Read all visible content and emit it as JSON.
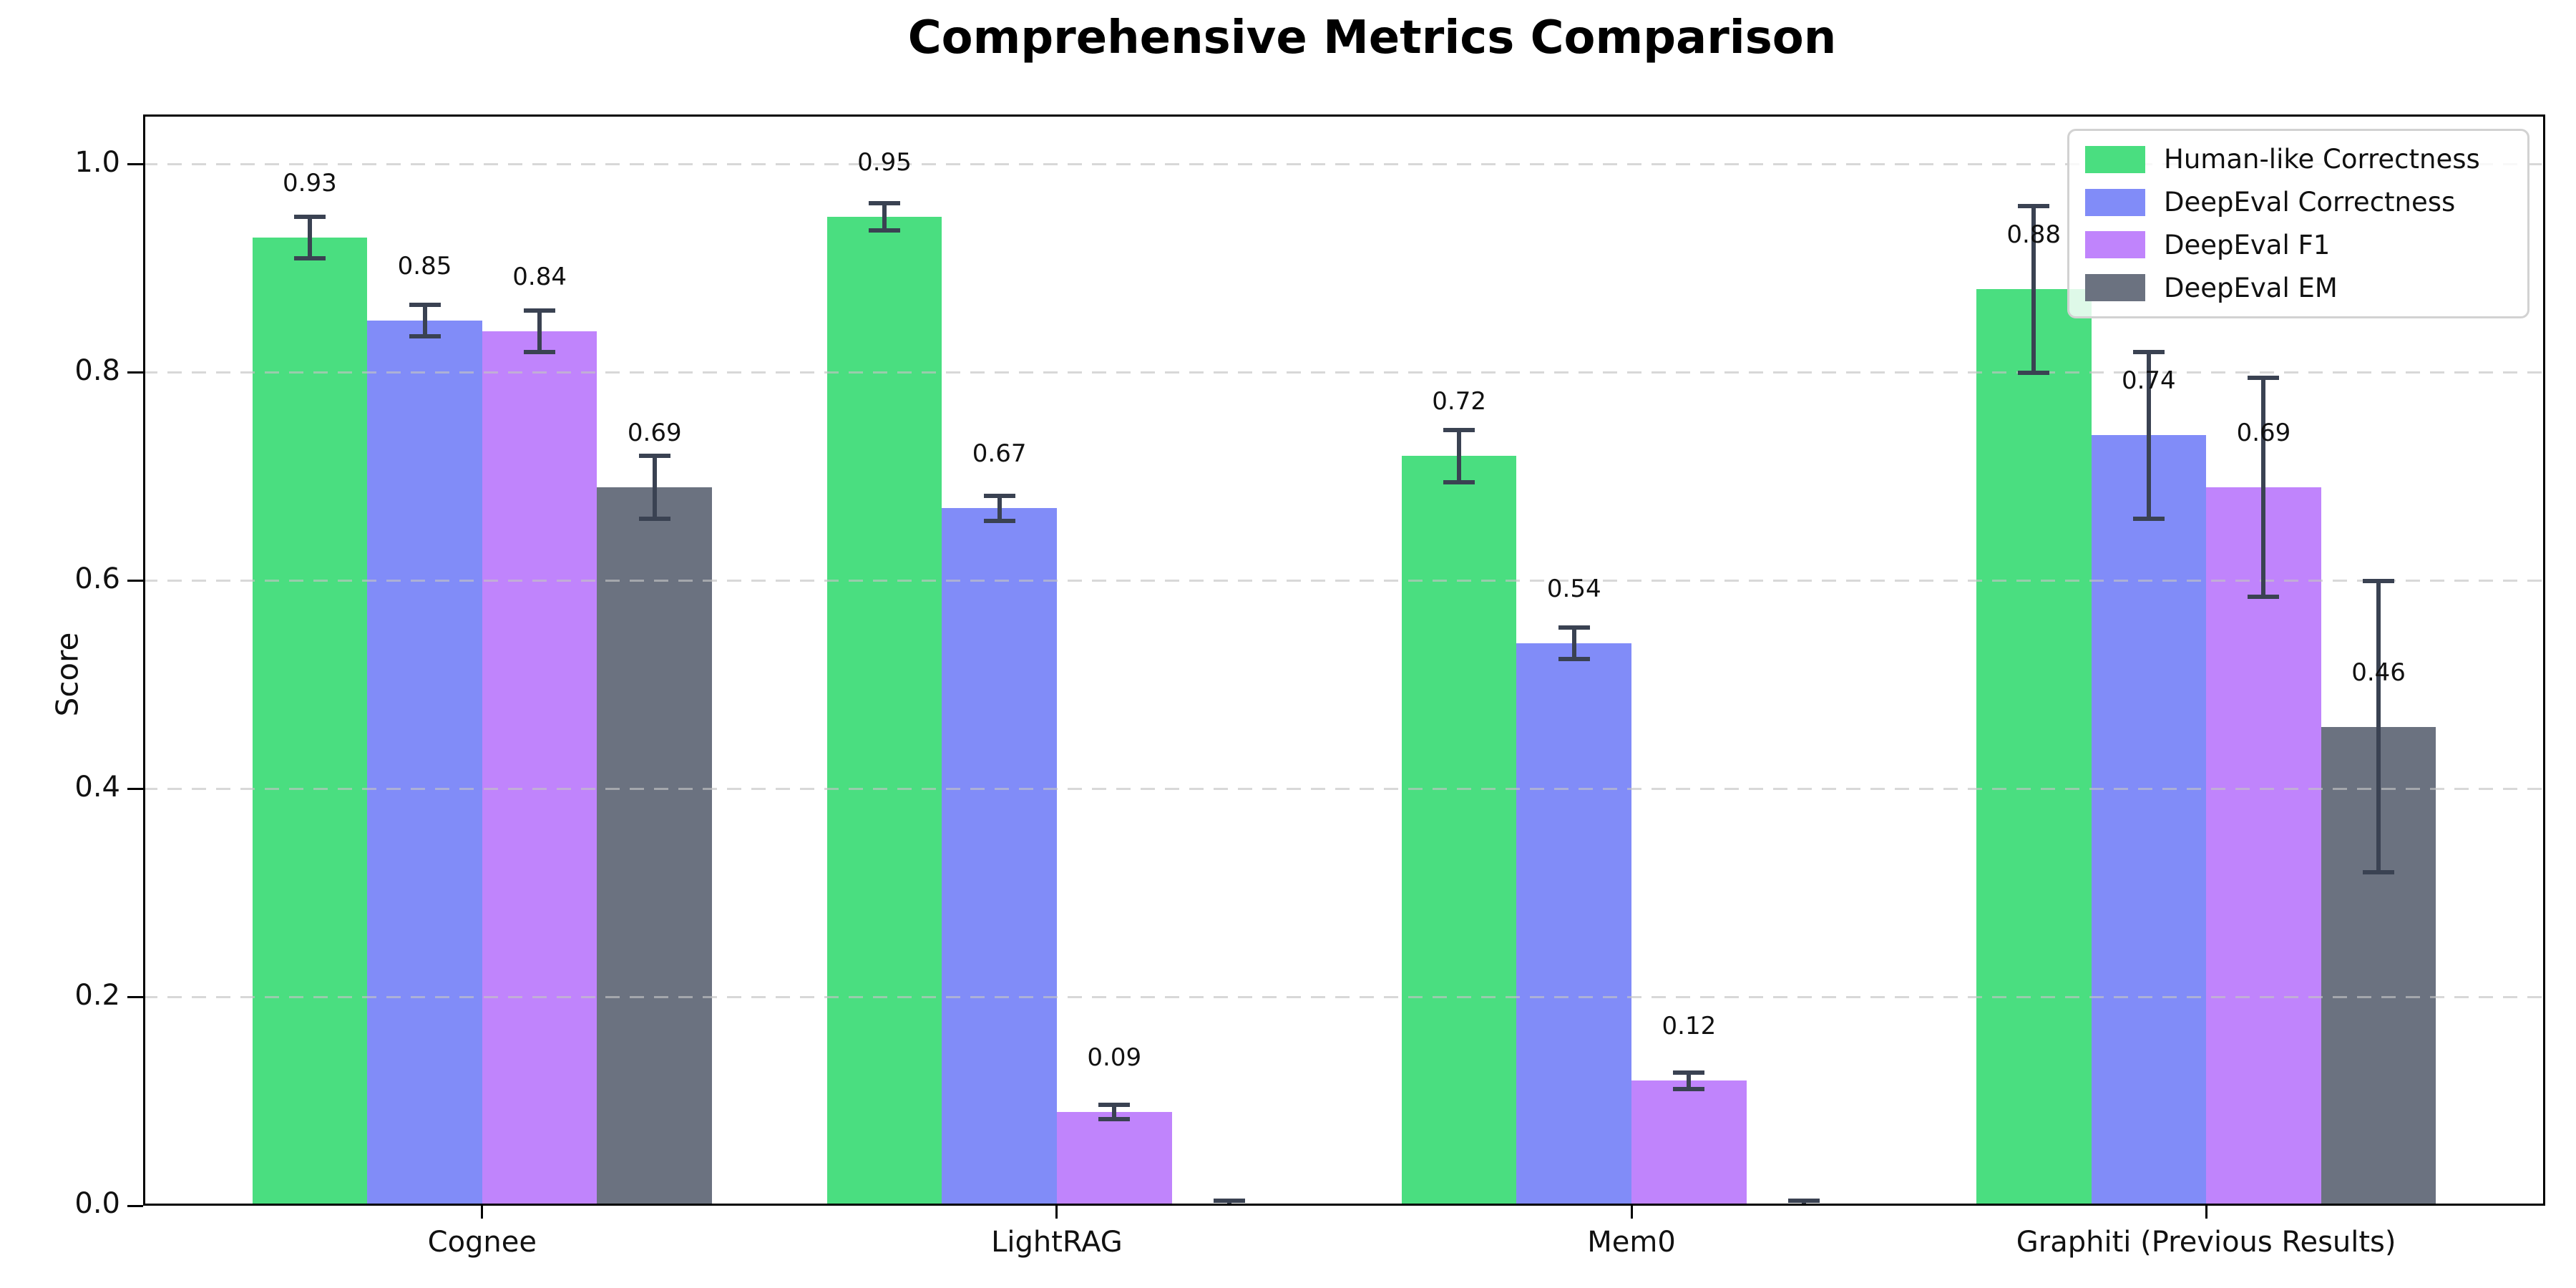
{
  "chart_data": {
    "type": "bar",
    "title": "Comprehensive Metrics Comparison",
    "ylabel": "Score",
    "xlabel": "",
    "categories": [
      "Cognee",
      "LightRAG",
      "Mem0",
      "Graphiti (Previous Results)"
    ],
    "series": [
      {
        "name": "Human-like Correctness",
        "color": "#4ade80",
        "values": [
          0.93,
          0.95,
          0.72,
          0.88
        ],
        "errors": [
          0.02,
          0.013,
          0.025,
          0.08
        ],
        "labels": [
          "0.93",
          "0.95",
          "0.72",
          "0.88"
        ]
      },
      {
        "name": "DeepEval Correctness",
        "color": "#818cf8",
        "values": [
          0.85,
          0.67,
          0.54,
          0.74
        ],
        "errors": [
          0.015,
          0.012,
          0.015,
          0.08
        ],
        "labels": [
          "0.85",
          "0.67",
          "0.54",
          "0.74"
        ]
      },
      {
        "name": "DeepEval F1",
        "color": "#c084fc",
        "values": [
          0.84,
          0.09,
          0.12,
          0.69
        ],
        "errors": [
          0.02,
          0.007,
          0.008,
          0.105
        ],
        "labels": [
          "0.84",
          "0.09",
          "0.12",
          "0.69"
        ]
      },
      {
        "name": "DeepEval EM",
        "color": "#6b7280",
        "values": [
          0.69,
          0.0,
          0.0,
          0.46
        ],
        "errors": [
          0.03,
          0.005,
          0.005,
          0.14
        ],
        "labels": [
          "0.69",
          null,
          null,
          "0.46"
        ]
      }
    ],
    "yticks": {
      "values": [
        0.0,
        0.2,
        0.4,
        0.6,
        0.8,
        1.0
      ],
      "labels": [
        "0.0",
        "0.2",
        "0.4",
        "0.6",
        "0.8",
        "1.0"
      ]
    },
    "ylim": [
      0,
      1.048
    ],
    "xlim": [
      -0.59,
      3.59
    ],
    "bar_width_units": 0.2,
    "grid": "dashed-horizontal",
    "grid_above_bars": true,
    "legend_position": "upper-right",
    "error_bar_color": "#3a4252",
    "background_color": "#ffffff"
  }
}
